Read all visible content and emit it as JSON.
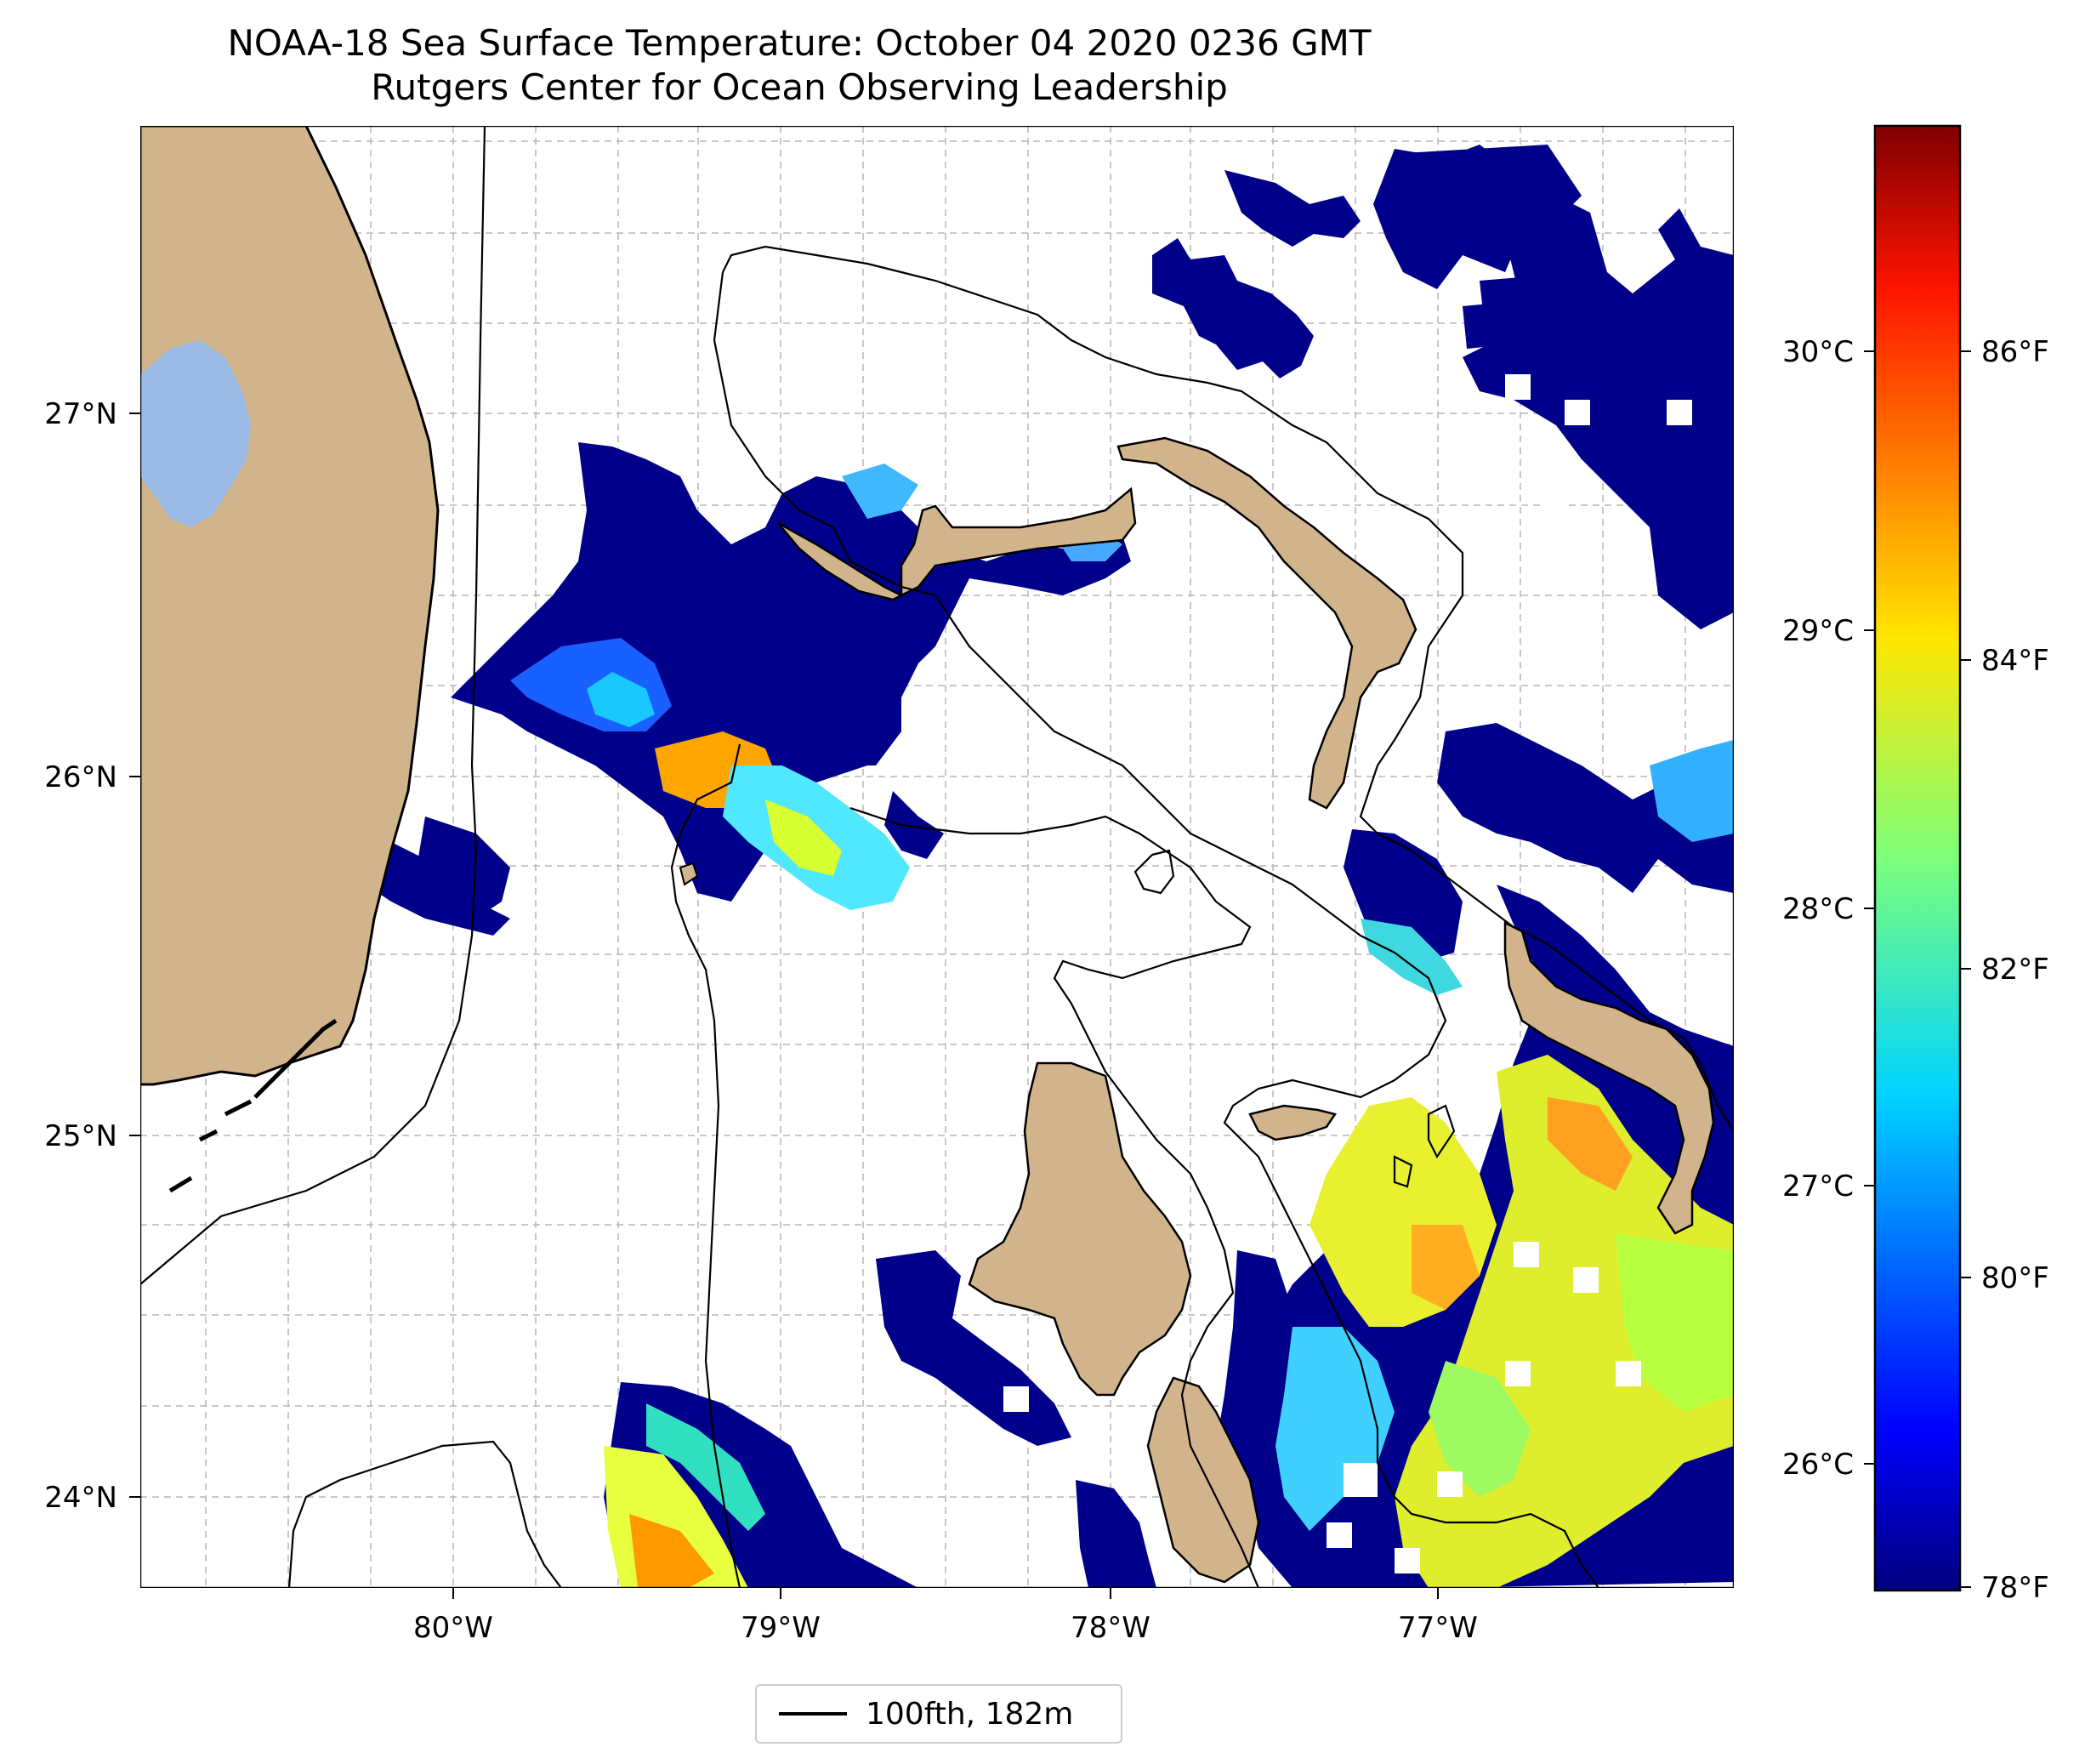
{
  "title": "NOAA-18 Sea Surface Temperature: October 04 2020 0236 GMT",
  "subtitle": "Rutgers Center for Ocean Observing Leadership",
  "map": {
    "lon_ticks": [
      "80°W",
      "79°W",
      "78°W",
      "77°W"
    ],
    "lat_ticks": [
      "27°N",
      "26°N",
      "25°N",
      "24°N"
    ],
    "grid": true,
    "land_color": "#d2b48c",
    "lake_color": "#9bbbe6",
    "missing_data_color": "#ffffff",
    "legend_label": "100fth, 182m"
  },
  "colorbar": {
    "colormap": "jet",
    "celsius_ticks": [
      "30°C",
      "29°C",
      "28°C",
      "27°C",
      "26°C"
    ],
    "fahrenheit_ticks": [
      "86°F",
      "84°F",
      "82°F",
      "80°F",
      "78°F"
    ]
  }
}
